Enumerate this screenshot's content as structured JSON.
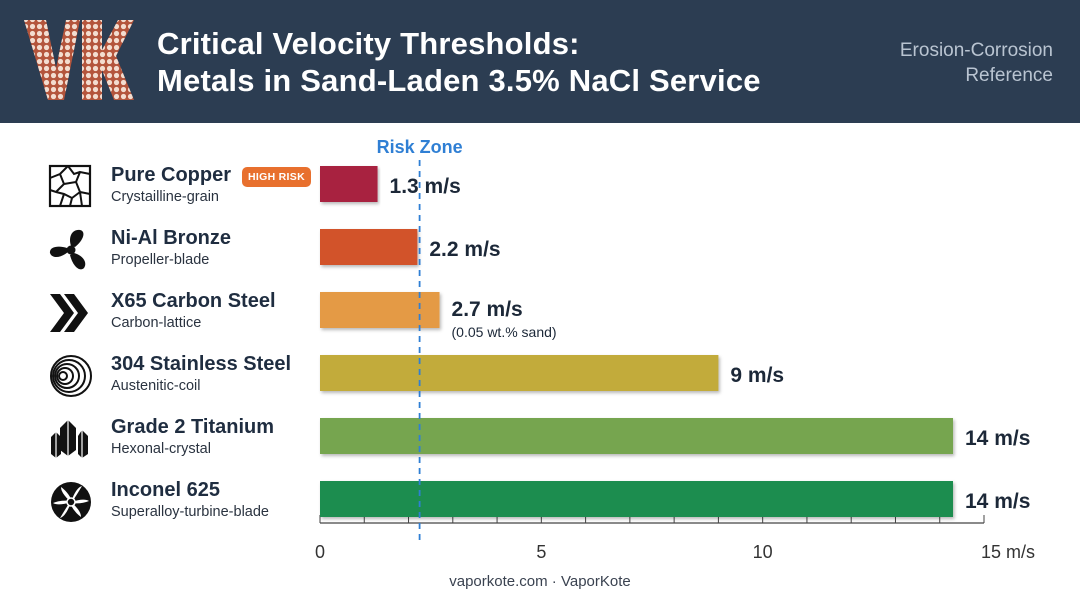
{
  "header": {
    "title_line1": "Critical Velocity Thresholds:",
    "title_line2": "Metals in Sand-Laden 3.5% NaCl Service",
    "reference_line1": "Erosion-Corrosion",
    "reference_line2": "Reference",
    "logo_text": "VK"
  },
  "colors": {
    "header_bg": "#2c3d52",
    "risk_line": "#2f7fd4",
    "badge": "#e8702e"
  },
  "rows": [
    {
      "name": "Pure Copper",
      "sub": "Crystailline-grain",
      "icon": "crystal-grain-icon",
      "badge": "HIGH RISK"
    },
    {
      "name": "Ni-Al Bronze",
      "sub": "Propeller-blade",
      "icon": "propeller-icon"
    },
    {
      "name": "X65 Carbon Steel",
      "sub": "Carbon-lattice",
      "icon": "chevron-lattice-icon"
    },
    {
      "name": "304 Stainless Steel",
      "sub": "Austenitic-coil",
      "icon": "coil-icon"
    },
    {
      "name": "Grade 2 Titanium",
      "sub": "Hexonal-crystal",
      "icon": "crystal-cluster-icon"
    },
    {
      "name": "Inconel 625",
      "sub": "Superalloy-turbine-blade",
      "icon": "turbine-icon"
    }
  ],
  "chart_data": {
    "type": "bar",
    "orientation": "horizontal",
    "categories": [
      "Pure Copper",
      "Ni-Al Bronze",
      "X65 Carbon Steel",
      "304 Stainless Steel",
      "Grade 2 Titanium",
      "Inconel 625"
    ],
    "values": [
      1.3,
      2.2,
      2.7,
      9,
      14.3,
      14.3
    ],
    "value_labels": [
      "1.3 m/s",
      "2.2 m/s",
      "2.7 m/s",
      "9 m/s",
      "14 m/s",
      "14 m/s"
    ],
    "value_notes": [
      "",
      "",
      "(0.05 wt.% sand)",
      "",
      "",
      ""
    ],
    "bar_colors": [
      "#a8213f",
      "#d2522b",
      "#e49a44",
      "#c2ab3a",
      "#76a54f",
      "#1f8d50"
    ],
    "xlim": [
      0,
      15
    ],
    "x_ticks": [
      0,
      5,
      10,
      15
    ],
    "x_tick_labels": [
      "0",
      "5",
      "10",
      "15 m/s"
    ],
    "reference_line": {
      "label": "Risk Zone",
      "value": 2.25,
      "style": "dashed"
    },
    "grid": false
  },
  "footer": {
    "text": "vaporkote.com · VaporKote"
  }
}
